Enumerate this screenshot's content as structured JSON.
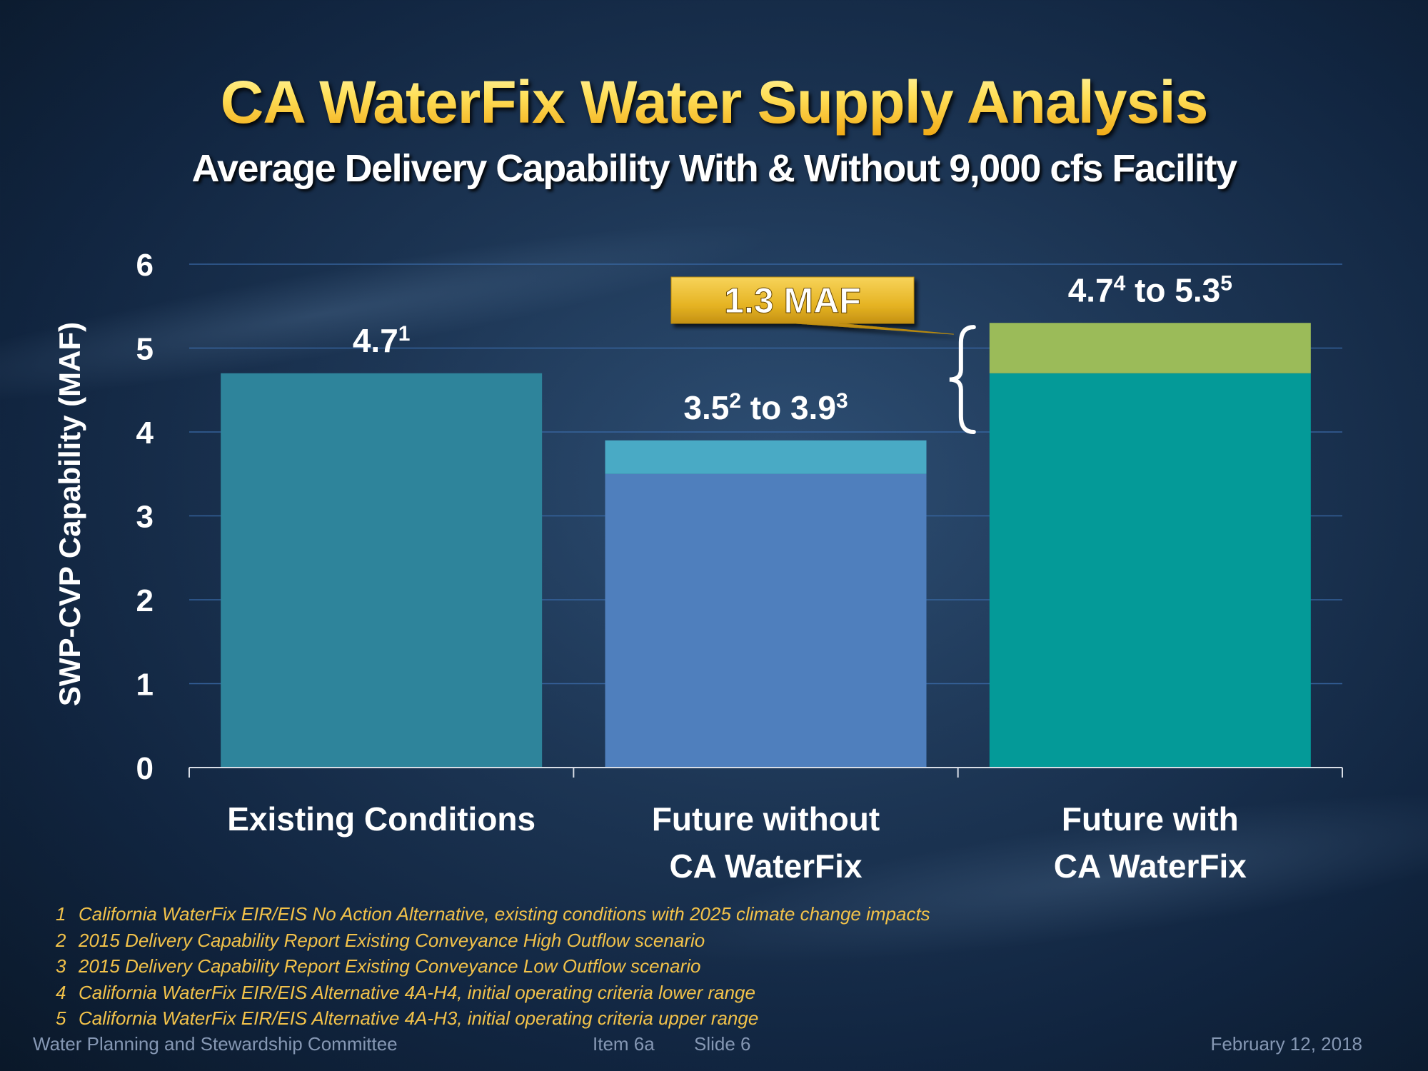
{
  "slide": {
    "title": "CA WaterFix Water Supply Analysis",
    "subtitle": "Average Delivery Capability With & Without  9,000 cfs Facility"
  },
  "chart_data": {
    "type": "bar",
    "stacked": true,
    "ylabel": "SWP-CVP Capability (MAF)",
    "ylim": [
      0,
      6
    ],
    "yticks": [
      "0",
      "1",
      "2",
      "3",
      "4",
      "5",
      "6"
    ],
    "grid": true,
    "categories": [
      [
        "Existing Conditions"
      ],
      [
        "Future without",
        "CA WaterFix"
      ],
      [
        "Future with",
        "CA WaterFix"
      ]
    ],
    "bars": [
      {
        "segments": [
          {
            "value": 4.7,
            "color": "#2e849b"
          }
        ],
        "label_parts": [
          {
            "text": "4.7"
          },
          {
            "text": "1",
            "sup": true
          }
        ]
      },
      {
        "segments": [
          {
            "value": 3.5,
            "color": "#4f7fbd"
          },
          {
            "value": 0.4,
            "color": "#49aac5"
          }
        ],
        "label_parts": [
          {
            "text": "3.5"
          },
          {
            "text": "2",
            "sup": true
          },
          {
            "text": " to 3.9"
          },
          {
            "text": "3",
            "sup": true
          }
        ]
      },
      {
        "segments": [
          {
            "value": 4.7,
            "color": "#049a98"
          },
          {
            "value": 0.6,
            "color": "#9bbb59"
          }
        ],
        "label_parts": [
          {
            "text": "4.7"
          },
          {
            "text": "4",
            "sup": true
          },
          {
            "text": " to 5.3"
          },
          {
            "text": "5",
            "sup": true
          }
        ]
      }
    ],
    "callout": {
      "text": "1.3 MAF",
      "color": "#e5b322"
    },
    "colors": {
      "grid": "#3a6aa8",
      "axis": "#d8dde6",
      "text": "#ffffff"
    }
  },
  "footnotes": [
    {
      "num": "1",
      "text": "California WaterFix EIR/EIS No Action Alternative, existing conditions with 2025 climate change impacts"
    },
    {
      "num": "2",
      "text": "2015 Delivery Capability Report Existing Conveyance High Outflow scenario"
    },
    {
      "num": "3",
      "text": "2015 Delivery Capability Report Existing Conveyance Low Outflow scenario"
    },
    {
      "num": "4",
      "text": "California WaterFix EIR/EIS Alternative 4A-H4, initial operating criteria lower range"
    },
    {
      "num": "5",
      "text": "California WaterFix EIR/EIS Alternative 4A-H3, initial operating criteria upper range"
    }
  ],
  "footer": {
    "committee": "Water Planning and Stewardship Committee",
    "item": "Item 6a",
    "slide": "Slide 6",
    "date": "February 12, 2018"
  }
}
